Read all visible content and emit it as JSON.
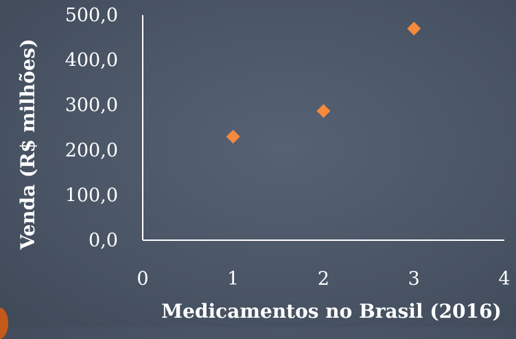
{
  "chart_data": {
    "type": "scatter",
    "title": "",
    "xlabel": "Medicamentos no Brasil (2016)",
    "ylabel": "Venda (R$ milhões)",
    "xlim": [
      0,
      4
    ],
    "ylim": [
      0,
      500
    ],
    "x_ticks": [
      "0",
      "1",
      "2",
      "3",
      "4"
    ],
    "y_ticks": [
      "0,0",
      "100,0",
      "200,0",
      "300,0",
      "400,0",
      "500,0"
    ],
    "grid": false,
    "legend": "none",
    "marker": "diamond",
    "marker_color": "#f58a3c",
    "axis_color": "#ffffff",
    "series": [
      {
        "x": [
          1,
          2,
          3
        ],
        "y": [
          230,
          287,
          470
        ]
      }
    ]
  }
}
